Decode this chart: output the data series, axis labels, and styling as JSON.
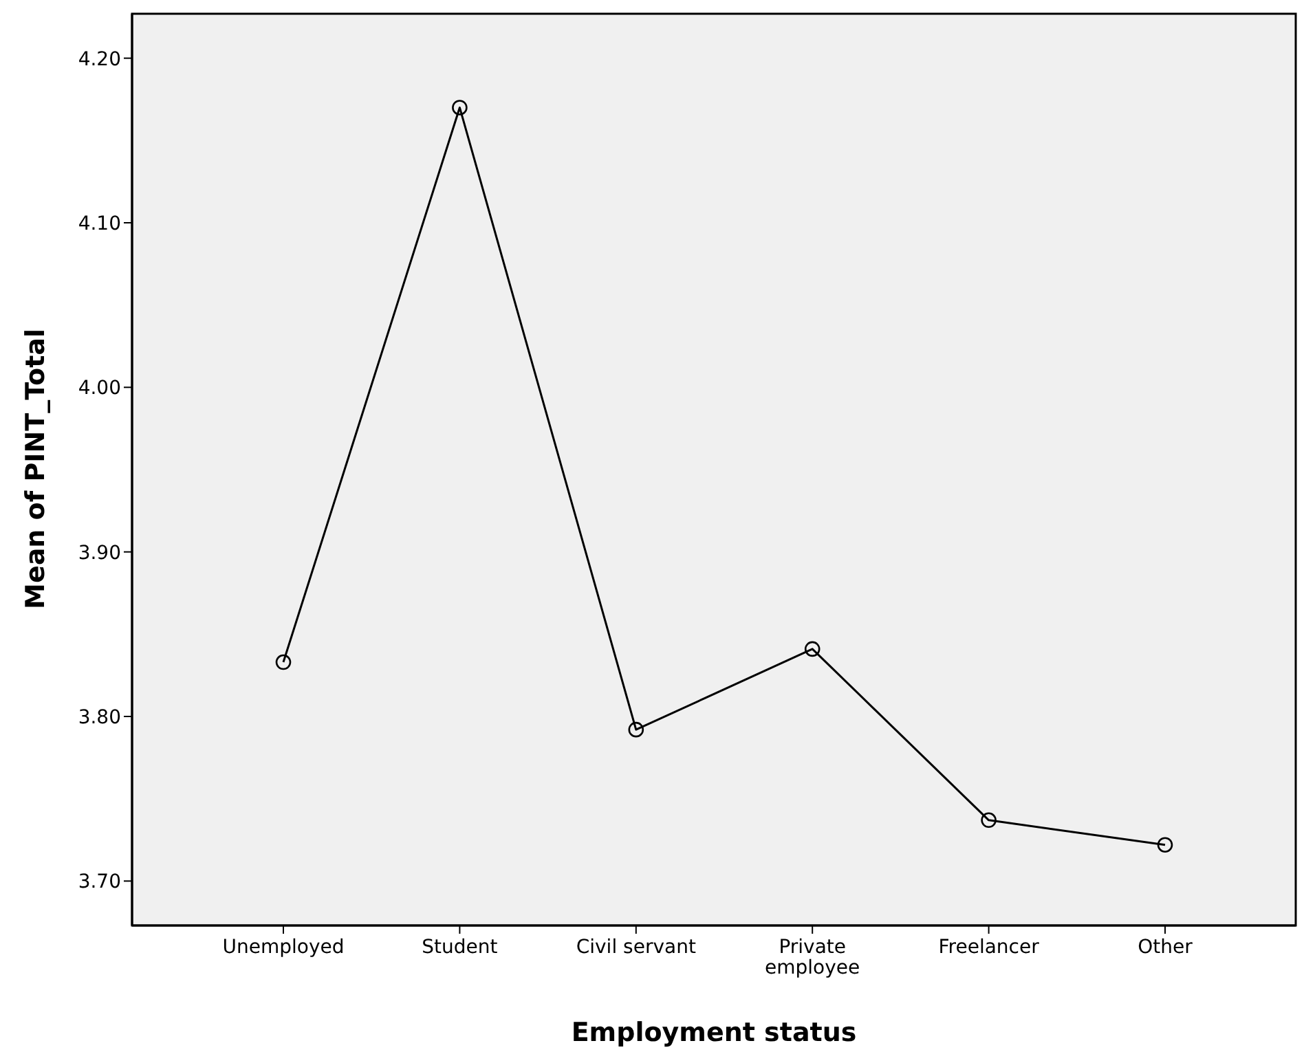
{
  "chart_data": {
    "type": "line",
    "xlabel": "Employment status",
    "ylabel": "Mean of PINT_Total",
    "categories": [
      "Unemployed",
      "Student",
      "Civil servant",
      "Private employee",
      "Freelancer",
      "Other"
    ],
    "series": [
      {
        "color": "#000000",
        "values": [
          3.833,
          4.17,
          3.792,
          3.841,
          3.737,
          3.722
        ]
      }
    ],
    "ylim": [
      3.673,
      4.227
    ],
    "yticks": [
      {
        "value": 3.7,
        "label": "3.70"
      },
      {
        "value": 3.8,
        "label": "3.80"
      },
      {
        "value": 3.9,
        "label": "3.90"
      },
      {
        "value": 4.0,
        "label": "4.00"
      },
      {
        "value": 4.1,
        "label": "4.10"
      },
      {
        "value": 4.2,
        "label": "4.20"
      }
    ],
    "legend": false,
    "marker": "circle",
    "line_style": "solid"
  }
}
